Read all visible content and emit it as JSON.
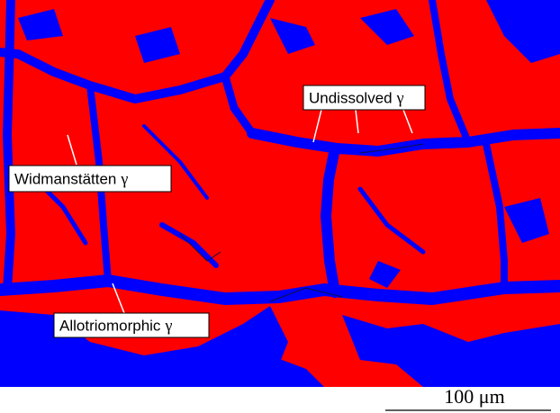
{
  "labels": [
    {
      "name": "Undissolved",
      "phase": "γ"
    },
    {
      "name": "Widmanstätten",
      "phase": "γ"
    },
    {
      "name": "Allotriomorphic",
      "phase": "γ"
    }
  ],
  "scale_bar": {
    "label": "100 μm"
  }
}
